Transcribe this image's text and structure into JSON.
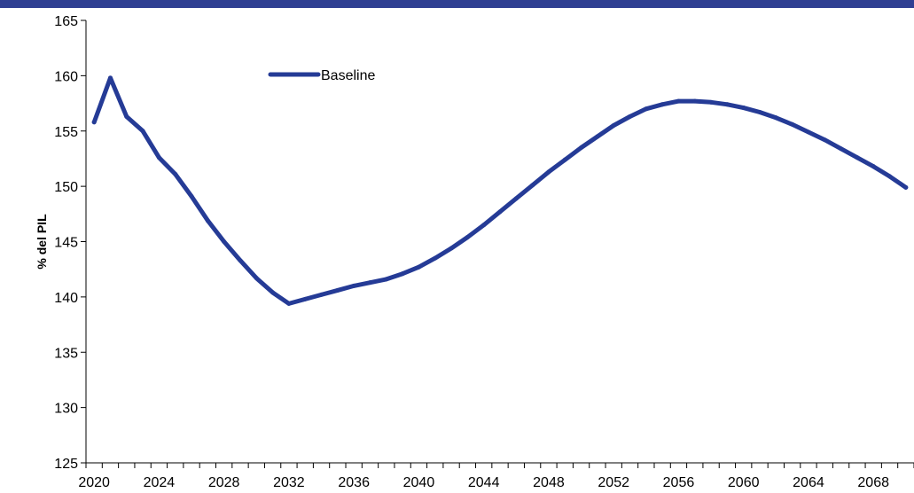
{
  "colors": {
    "band": "#2f3f92",
    "series": "#253b96",
    "axis": "#000000"
  },
  "chart_data": {
    "type": "line",
    "ylabel": "% del PIL",
    "ylim": [
      125,
      165
    ],
    "yticks": [
      125,
      130,
      135,
      140,
      145,
      150,
      155,
      160,
      165
    ],
    "xlim": [
      2019.5,
      2070.5
    ],
    "xtick_labels": [
      2020,
      2024,
      2028,
      2032,
      2036,
      2040,
      2044,
      2048,
      2052,
      2056,
      2060,
      2064,
      2068
    ],
    "legend_position": "top-left",
    "grid": false,
    "series": [
      {
        "name": "Baseline",
        "x": [
          2020,
          2021,
          2022,
          2023,
          2024,
          2025,
          2026,
          2027,
          2028,
          2029,
          2030,
          2031,
          2032,
          2033,
          2034,
          2035,
          2036,
          2037,
          2038,
          2039,
          2040,
          2041,
          2042,
          2043,
          2044,
          2045,
          2046,
          2047,
          2048,
          2049,
          2050,
          2051,
          2052,
          2053,
          2054,
          2055,
          2056,
          2057,
          2058,
          2059,
          2060,
          2061,
          2062,
          2063,
          2064,
          2065,
          2066,
          2067,
          2068,
          2069,
          2070
        ],
        "values": [
          155.8,
          159.8,
          156.3,
          155.0,
          152.6,
          151.1,
          149.1,
          146.9,
          145.0,
          143.3,
          141.7,
          140.4,
          139.4,
          139.8,
          140.2,
          140.6,
          141.0,
          141.3,
          141.6,
          142.1,
          142.7,
          143.5,
          144.4,
          145.4,
          146.5,
          147.7,
          148.9,
          150.1,
          151.3,
          152.4,
          153.5,
          154.5,
          155.5,
          156.3,
          157.0,
          157.4,
          157.7,
          157.7,
          157.6,
          157.4,
          157.1,
          156.7,
          156.2,
          155.6,
          154.9,
          154.2,
          153.4,
          152.6,
          151.8,
          150.9,
          149.9
        ]
      }
    ]
  }
}
